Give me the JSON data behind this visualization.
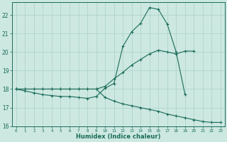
{
  "xlabel": "Humidex (Indice chaleur)",
  "background_color": "#cce8e0",
  "grid_color": "#aad0c8",
  "line_color": "#1a6b5a",
  "x_values": [
    0,
    1,
    2,
    3,
    4,
    5,
    6,
    7,
    8,
    9,
    10,
    11,
    12,
    13,
    14,
    15,
    16,
    17,
    18,
    19,
    20,
    21,
    22,
    23
  ],
  "line1": [
    18.0,
    17.9,
    17.8,
    17.7,
    17.65,
    17.6,
    17.6,
    17.55,
    17.5,
    17.6,
    18.05,
    18.3,
    20.3,
    21.1,
    21.55,
    22.4,
    22.3,
    21.5,
    20.0,
    17.7,
    null,
    null,
    null,
    null
  ],
  "line2": [
    18.0,
    18.0,
    18.0,
    18.0,
    18.0,
    18.0,
    18.0,
    18.0,
    18.0,
    18.0,
    18.15,
    18.55,
    18.9,
    19.3,
    19.6,
    19.9,
    20.1,
    20.0,
    19.9,
    20.05,
    20.05,
    null,
    null,
    null
  ],
  "line3": [
    18.0,
    18.0,
    18.0,
    18.0,
    18.0,
    18.0,
    18.0,
    18.0,
    18.0,
    18.0,
    17.55,
    17.35,
    17.2,
    17.1,
    17.0,
    16.9,
    16.8,
    16.65,
    16.55,
    16.45,
    16.35,
    16.25,
    16.2,
    16.2
  ],
  "ylim": [
    16,
    22.7
  ],
  "xlim": [
    -0.5,
    23.5
  ],
  "yticks": [
    16,
    17,
    18,
    19,
    20,
    21,
    22
  ],
  "xticks": [
    0,
    1,
    2,
    3,
    4,
    5,
    6,
    7,
    8,
    9,
    10,
    11,
    12,
    13,
    14,
    15,
    16,
    17,
    18,
    19,
    20,
    21,
    22,
    23
  ]
}
